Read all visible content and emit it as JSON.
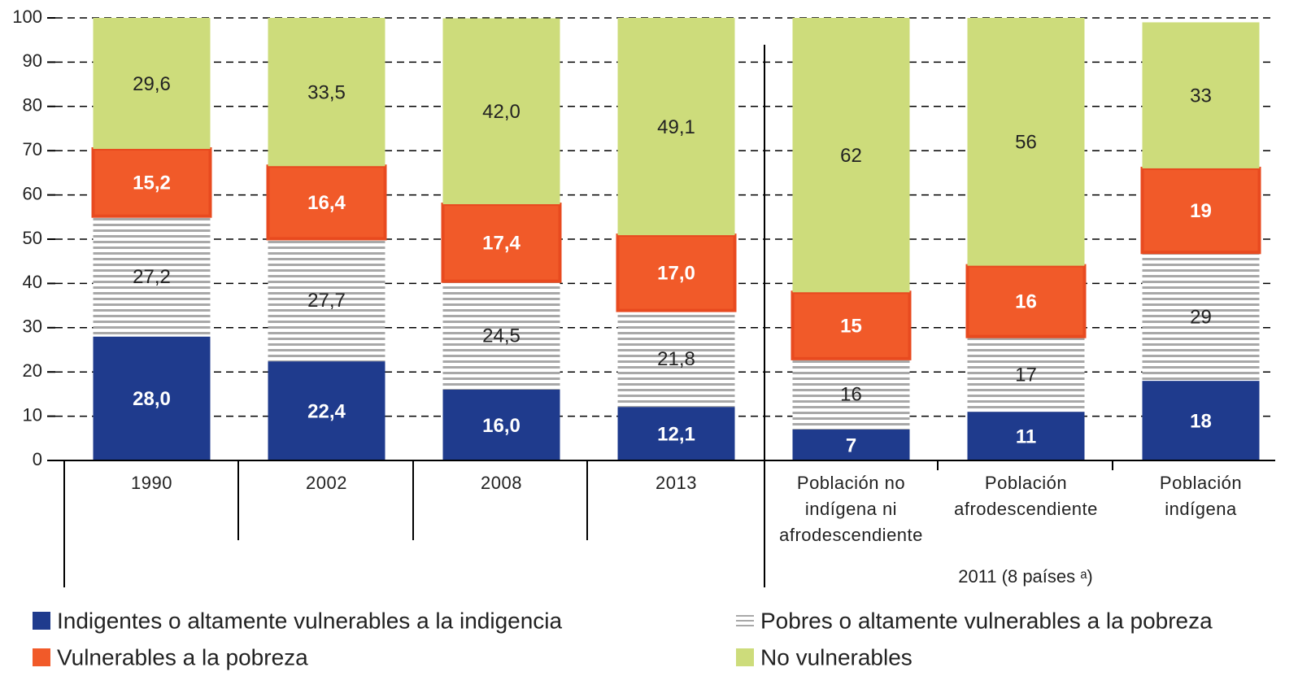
{
  "chart_data": {
    "type": "stacked-bar",
    "categories": [
      "1990",
      "2002",
      "2008",
      "2013",
      "Población no\nindígena ni\nafrodescendiente",
      "Población\nafrodescendiente",
      "Población\nindígena"
    ],
    "group_label": "2011 (8 países ᵃ)",
    "series": [
      {
        "name": "Indigentes o altamente vulnerables a la indigencia",
        "color": "#1f3b8d",
        "label_color": "#ffffff",
        "values": [
          28.0,
          22.4,
          16.0,
          12.1,
          7,
          11,
          18
        ],
        "value_labels": [
          "28,0",
          "22,4",
          "16,0",
          "12,1",
          "7",
          "11",
          "18"
        ]
      },
      {
        "name": "Pobres o altamente vulnerables a la pobreza",
        "color": "#a8a8a8",
        "pattern": "horizontal-lines",
        "label_color": "#222222",
        "values": [
          27.2,
          27.7,
          24.5,
          21.8,
          16,
          17,
          29
        ],
        "value_labels": [
          "27,2",
          "27,7",
          "24,5",
          "21,8",
          "16",
          "17",
          "29"
        ]
      },
      {
        "name": "Vulnerables a la pobreza",
        "color": "#f15a29",
        "label_color": "#ffffff",
        "values": [
          15.2,
          16.4,
          17.4,
          17.0,
          15,
          16,
          19
        ],
        "value_labels": [
          "15,2",
          "16,4",
          "17,4",
          "17,0",
          "15",
          "16",
          "19"
        ]
      },
      {
        "name": "No vulnerables",
        "color": "#cddc7b",
        "label_color": "#222222",
        "values": [
          29.6,
          33.5,
          42.0,
          49.1,
          62,
          56,
          33
        ],
        "value_labels": [
          "29,6",
          "33,5",
          "42,0",
          "49,1",
          "62",
          "56",
          "33"
        ]
      }
    ],
    "ylim": [
      0,
      100
    ],
    "yticks": [
      0,
      10,
      20,
      30,
      40,
      50,
      60,
      70,
      80,
      90,
      100
    ],
    "grid": true
  }
}
